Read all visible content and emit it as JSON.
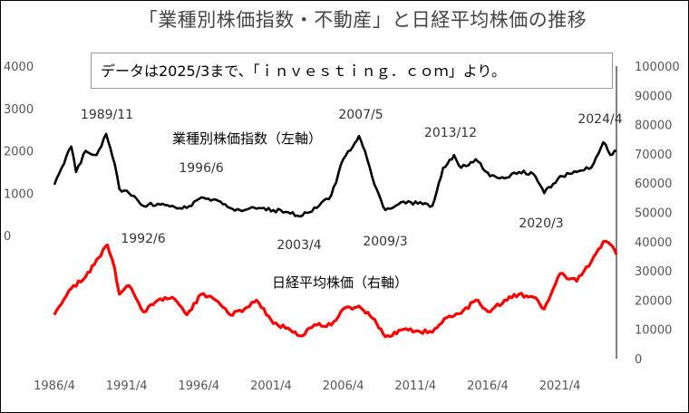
{
  "chart_data": {
    "type": "line",
    "title": "「業種別株価指数・不動産」と日経平均株価の推移",
    "source_note": "データは2025/3まで、「ｉｎｖｅｓｔｉｎｇ．ｃｏｍ」より。",
    "x_ticks": [
      "1986/4",
      "1991/4",
      "1996/4",
      "2001/4",
      "2006/4",
      "2011/4",
      "2016/4",
      "2021/4"
    ],
    "left_axis": {
      "ticks": [
        "0",
        "1000",
        "2000",
        "3000",
        "4000"
      ],
      "ylim": [
        0,
        4000
      ]
    },
    "right_axis": {
      "ticks": [
        "0",
        "10000",
        "20000",
        "30000",
        "40000",
        "50000",
        "60000",
        "70000",
        "80000",
        "90000",
        "100000"
      ],
      "ylim": [
        0,
        100000
      ]
    },
    "series": [
      {
        "name": "業種別株価指数（左軸）",
        "axis": "left",
        "color": "#000000",
        "points": [
          [
            "1986/4",
            1200
          ],
          [
            "1986/10",
            1600
          ],
          [
            "1987/6",
            2100
          ],
          [
            "1987/10",
            1500
          ],
          [
            "1988/6",
            2000
          ],
          [
            "1989/3",
            1900
          ],
          [
            "1989/11",
            2400
          ],
          [
            "1990/6",
            1700
          ],
          [
            "1990/10",
            1100
          ],
          [
            "1991/6",
            1000
          ],
          [
            "1992/6",
            700
          ],
          [
            "1993/6",
            750
          ],
          [
            "1994/6",
            700
          ],
          [
            "1995/6",
            650
          ],
          [
            "1996/6",
            900
          ],
          [
            "1997/6",
            850
          ],
          [
            "1998/6",
            650
          ],
          [
            "1999/6",
            600
          ],
          [
            "2000/6",
            650
          ],
          [
            "2001/6",
            600
          ],
          [
            "2002/6",
            550
          ],
          [
            "2003/4",
            450
          ],
          [
            "2004/6",
            650
          ],
          [
            "2005/6",
            950
          ],
          [
            "2006/4",
            1800
          ],
          [
            "2006/12",
            2100
          ],
          [
            "2007/5",
            2350
          ],
          [
            "2007/10",
            2000
          ],
          [
            "2008/6",
            1200
          ],
          [
            "2009/3",
            600
          ],
          [
            "2010/6",
            800
          ],
          [
            "2011/6",
            750
          ],
          [
            "2012/6",
            700
          ],
          [
            "2013/3",
            1600
          ],
          [
            "2013/12",
            1900
          ],
          [
            "2014/6",
            1600
          ],
          [
            "2015/6",
            1800
          ],
          [
            "2016/6",
            1400
          ],
          [
            "2017/6",
            1350
          ],
          [
            "2018/6",
            1500
          ],
          [
            "2019/6",
            1450
          ],
          [
            "2020/3",
            1000
          ],
          [
            "2021/4",
            1400
          ],
          [
            "2022/6",
            1500
          ],
          [
            "2023/6",
            1600
          ],
          [
            "2024/4",
            2200
          ],
          [
            "2024/10",
            1900
          ],
          [
            "2025/3",
            2000
          ]
        ]
      },
      {
        "name": "日経平均株価（右軸）",
        "axis": "right",
        "color": "#ff0000",
        "points": [
          [
            "1986/4",
            15000
          ],
          [
            "1987/6",
            24000
          ],
          [
            "1988/6",
            28000
          ],
          [
            "1989/12",
            38900
          ],
          [
            "1990/6",
            31000
          ],
          [
            "1990/10",
            22000
          ],
          [
            "1991/6",
            25000
          ],
          [
            "1992/6",
            16000
          ],
          [
            "1993/6",
            20000
          ],
          [
            "1994/6",
            21000
          ],
          [
            "1995/6",
            15000
          ],
          [
            "1996/6",
            22000
          ],
          [
            "1997/6",
            20000
          ],
          [
            "1998/6",
            15000
          ],
          [
            "1999/6",
            17000
          ],
          [
            "2000/4",
            20000
          ],
          [
            "2001/6",
            12000
          ],
          [
            "2002/6",
            10500
          ],
          [
            "2003/4",
            7800
          ],
          [
            "2004/6",
            11500
          ],
          [
            "2005/6",
            11500
          ],
          [
            "2006/4",
            17000
          ],
          [
            "2007/5",
            18000
          ],
          [
            "2008/6",
            13500
          ],
          [
            "2009/3",
            7500
          ],
          [
            "2010/6",
            10000
          ],
          [
            "2011/6",
            9500
          ],
          [
            "2012/6",
            9000
          ],
          [
            "2013/6",
            14000
          ],
          [
            "2014/6",
            15500
          ],
          [
            "2015/6",
            20000
          ],
          [
            "2016/6",
            16000
          ],
          [
            "2017/6",
            20000
          ],
          [
            "2018/6",
            22000
          ],
          [
            "2019/6",
            21000
          ],
          [
            "2020/3",
            17000
          ],
          [
            "2021/4",
            29000
          ],
          [
            "2022/6",
            26500
          ],
          [
            "2023/6",
            33000
          ],
          [
            "2024/4",
            40000
          ],
          [
            "2024/10",
            39000
          ],
          [
            "2025/3",
            35600
          ]
        ]
      }
    ],
    "annotations": [
      {
        "text": "1989/11",
        "date": "1989/11",
        "position": "above"
      },
      {
        "text": "1992/6",
        "date": "1992/6",
        "position": "below"
      },
      {
        "text": "1996/6",
        "date": "1996/6",
        "position": "above"
      },
      {
        "text": "2003/4",
        "date": "2003/4",
        "position": "below"
      },
      {
        "text": "2007/5",
        "date": "2007/5",
        "position": "above"
      },
      {
        "text": "2009/3",
        "date": "2009/3",
        "position": "below"
      },
      {
        "text": "2013/12",
        "date": "2013/12",
        "position": "above"
      },
      {
        "text": "2020/3",
        "date": "2020/3",
        "position": "below"
      },
      {
        "text": "2024/4",
        "date": "2024/4",
        "position": "above"
      }
    ],
    "grid": false,
    "legend": "inline labels"
  }
}
